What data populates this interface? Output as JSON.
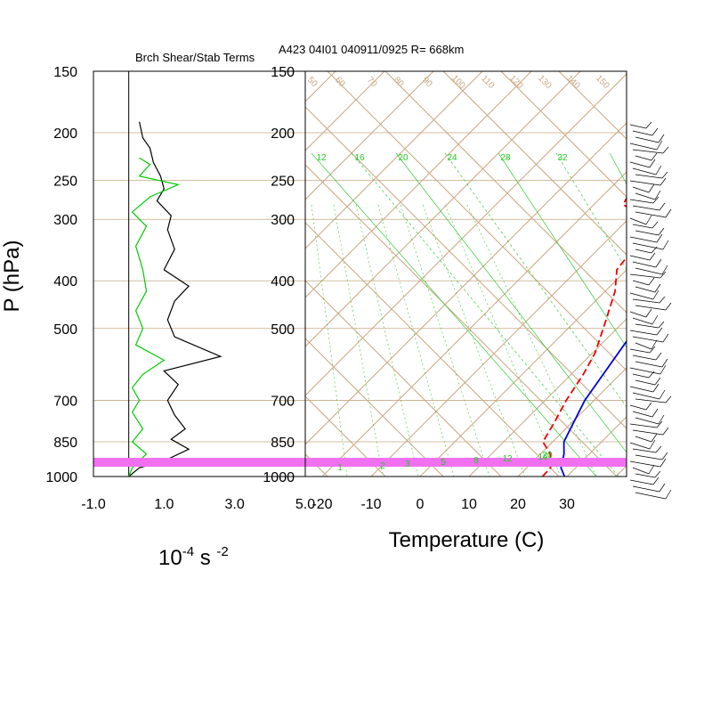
{
  "header": {
    "left_title": "Brch Shear/Stab Terms",
    "right_title": "A423 04I01 040911/0925 R= 668km"
  },
  "axes": {
    "p_label": "P (hPa)",
    "pressure_ticks": [
      "150",
      "200",
      "250",
      "300",
      "400",
      "500",
      "700",
      "850",
      "1000"
    ],
    "pressure_values": [
      150,
      200,
      250,
      300,
      400,
      500,
      700,
      850,
      1000
    ],
    "left_x_ticks": [
      "-1.0",
      "1.0",
      "3.0",
      "5.0"
    ],
    "left_x_values": [
      -1,
      1,
      3,
      5
    ],
    "left_x_label_base": "10",
    "left_x_label_exp1": "-4",
    "left_x_label_unit": " s ",
    "left_x_label_exp2": "-2",
    "temp_ticks": [
      "-20",
      "-10",
      "0",
      "10",
      "20",
      "30"
    ],
    "temp_values": [
      -20,
      -10,
      0,
      10,
      20,
      30
    ],
    "temp_label": "Temperature (C)"
  },
  "colors": {
    "shear": "#000000",
    "stab": "#00cc00",
    "temperature": "#0000dd",
    "dewpoint": "#ee0000",
    "grid": "#c8a882",
    "mixing": "#33cc33",
    "band": "#f070f0"
  },
  "chart_data": [
    {
      "type": "line",
      "title": "Brch Shear/Stab Terms",
      "xlabel": "10-4 s -2",
      "ylabel": "P (hPa)",
      "xlim": [
        -1,
        5
      ],
      "ylim": [
        1000,
        150
      ],
      "y_scale": "log",
      "series": [
        {
          "key": "shear",
          "points": [
            [
              0.3,
              190
            ],
            [
              0.4,
              205
            ],
            [
              0.6,
              215
            ],
            [
              0.7,
              230
            ],
            [
              0.9,
              245
            ],
            [
              1.0,
              260
            ],
            [
              0.8,
              275
            ],
            [
              1.2,
              295
            ],
            [
              1.1,
              315
            ],
            [
              1.3,
              345
            ],
            [
              1.0,
              380
            ],
            [
              1.7,
              410
            ],
            [
              1.3,
              440
            ],
            [
              1.1,
              480
            ],
            [
              1.3,
              520
            ],
            [
              2.6,
              570
            ],
            [
              1.0,
              610
            ],
            [
              1.4,
              650
            ],
            [
              1.1,
              700
            ],
            [
              1.3,
              750
            ],
            [
              1.6,
              800
            ],
            [
              1.2,
              840
            ],
            [
              1.7,
              880
            ],
            [
              1.0,
              930
            ],
            [
              0.3,
              960
            ],
            [
              0.0,
              1000
            ]
          ]
        },
        {
          "key": "stab",
          "points": [
            [
              0.3,
              225
            ],
            [
              0.6,
              232
            ],
            [
              0.3,
              245
            ],
            [
              1.4,
              255
            ],
            [
              0.6,
              270
            ],
            [
              0.1,
              290
            ],
            [
              0.5,
              310
            ],
            [
              0.2,
              340
            ],
            [
              0.4,
              380
            ],
            [
              0.5,
              420
            ],
            [
              0.2,
              460
            ],
            [
              0.4,
              500
            ],
            [
              0.2,
              540
            ],
            [
              1.0,
              580
            ],
            [
              0.4,
              620
            ],
            [
              0.1,
              660
            ],
            [
              0.3,
              700
            ],
            [
              0.1,
              740
            ],
            [
              0.4,
              800
            ],
            [
              0.1,
              850
            ],
            [
              0.5,
              900
            ],
            [
              0.1,
              960
            ],
            [
              0.0,
              1000
            ]
          ]
        }
      ]
    },
    {
      "type": "line",
      "title": "A423 04I01 040911/0925 R= 668km",
      "xlabel": "Temperature (C)",
      "ylabel": "P (hPa)",
      "xlim": [
        -23,
        43
      ],
      "ylim": [
        1000,
        150
      ],
      "y_scale": "log",
      "skew": "45 degree skew-T",
      "mixing_ratio_labels": [
        "12",
        "16",
        "20",
        "24",
        "28",
        "32"
      ],
      "mixing_ratio_labels_bottom": [
        "1",
        "2",
        "3",
        "5",
        "8",
        "12",
        "16",
        "20"
      ],
      "adiabat_labels": [
        "50",
        "60",
        "70",
        "80",
        "90",
        "100",
        "110",
        "120",
        "130",
        "140",
        "150"
      ],
      "series": [
        {
          "key": "temperature",
          "points": [
            [
              29.5,
              1000
            ],
            [
              27.0,
              960
            ],
            [
              24.8,
              900
            ],
            [
              22.3,
              850
            ],
            [
              18.1,
              700
            ],
            [
              15.7,
              580
            ],
            [
              14.3,
              520
            ],
            [
              11.6,
              430
            ],
            [
              7.0,
              350
            ],
            [
              2.4,
              280
            ],
            [
              -3.4,
              230
            ],
            [
              -6.4,
              200
            ],
            [
              -12.5,
              175
            ]
          ]
        },
        {
          "key": "dewpoint",
          "points": [
            [
              25,
              1000
            ],
            [
              24.9,
              960
            ],
            [
              22,
              900
            ],
            [
              18,
              850
            ],
            [
              16.5,
              780
            ],
            [
              14.3,
              700
            ],
            [
              12.5,
              620
            ],
            [
              10.5,
              560
            ],
            [
              6,
              480
            ],
            [
              2,
              420
            ],
            [
              -2,
              380
            ],
            [
              -3,
              340
            ],
            [
              -5,
              310
            ],
            [
              -9,
              300
            ],
            [
              -10,
              290
            ],
            [
              -14,
              280
            ],
            [
              -16,
              255
            ],
            [
              -18,
              235
            ],
            [
              -25,
              215
            ]
          ]
        },
        {
          "key": "pink_band",
          "points": [
            [
              -20,
              950
            ],
            [
              45,
              950
            ]
          ]
        }
      ]
    }
  ]
}
